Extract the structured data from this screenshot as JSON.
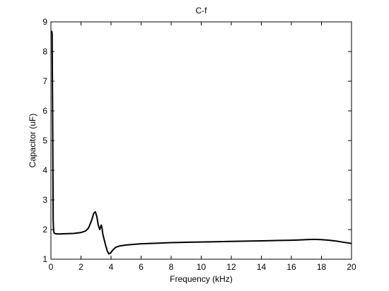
{
  "chart_data": {
    "type": "line",
    "title": "C-f",
    "xlabel": "Frequency (kHz)",
    "ylabel": "Capacitor (uF)",
    "xlim": [
      0,
      20
    ],
    "ylim": [
      1,
      9
    ],
    "xticks": [
      0,
      2,
      4,
      6,
      8,
      10,
      12,
      14,
      16,
      18,
      20
    ],
    "yticks": [
      1,
      2,
      3,
      4,
      5,
      6,
      7,
      8,
      9
    ],
    "grid": false,
    "legend": "none",
    "line_color": "#000000",
    "series": [
      {
        "x": [
          0.05,
          0.08,
          0.12,
          0.15,
          0.18,
          0.22,
          0.3,
          0.5,
          1.0,
          1.5,
          2.0,
          2.3,
          2.5,
          2.7,
          2.85,
          2.95,
          3.05,
          3.15,
          3.25,
          3.35,
          3.4,
          3.45,
          3.55,
          3.65,
          3.75,
          3.85,
          3.95,
          4.1,
          4.3,
          4.6,
          5.0,
          5.5,
          6.0,
          7.0,
          8.0,
          9.0,
          10.0,
          11.0,
          12.0,
          13.0,
          14.0,
          15.0,
          16.0,
          16.5,
          17.0,
          17.5,
          18.0,
          18.5,
          19.0,
          19.5,
          20.0
        ],
        "y": [
          8.7,
          8.6,
          5.3,
          2.3,
          1.95,
          1.88,
          1.86,
          1.85,
          1.86,
          1.87,
          1.9,
          1.95,
          2.05,
          2.3,
          2.55,
          2.6,
          2.45,
          2.15,
          2.0,
          2.15,
          2.05,
          1.85,
          1.65,
          1.45,
          1.28,
          1.18,
          1.2,
          1.3,
          1.4,
          1.45,
          1.48,
          1.5,
          1.52,
          1.54,
          1.56,
          1.57,
          1.58,
          1.59,
          1.6,
          1.61,
          1.62,
          1.63,
          1.64,
          1.65,
          1.66,
          1.67,
          1.66,
          1.64,
          1.61,
          1.57,
          1.53
        ]
      }
    ]
  }
}
